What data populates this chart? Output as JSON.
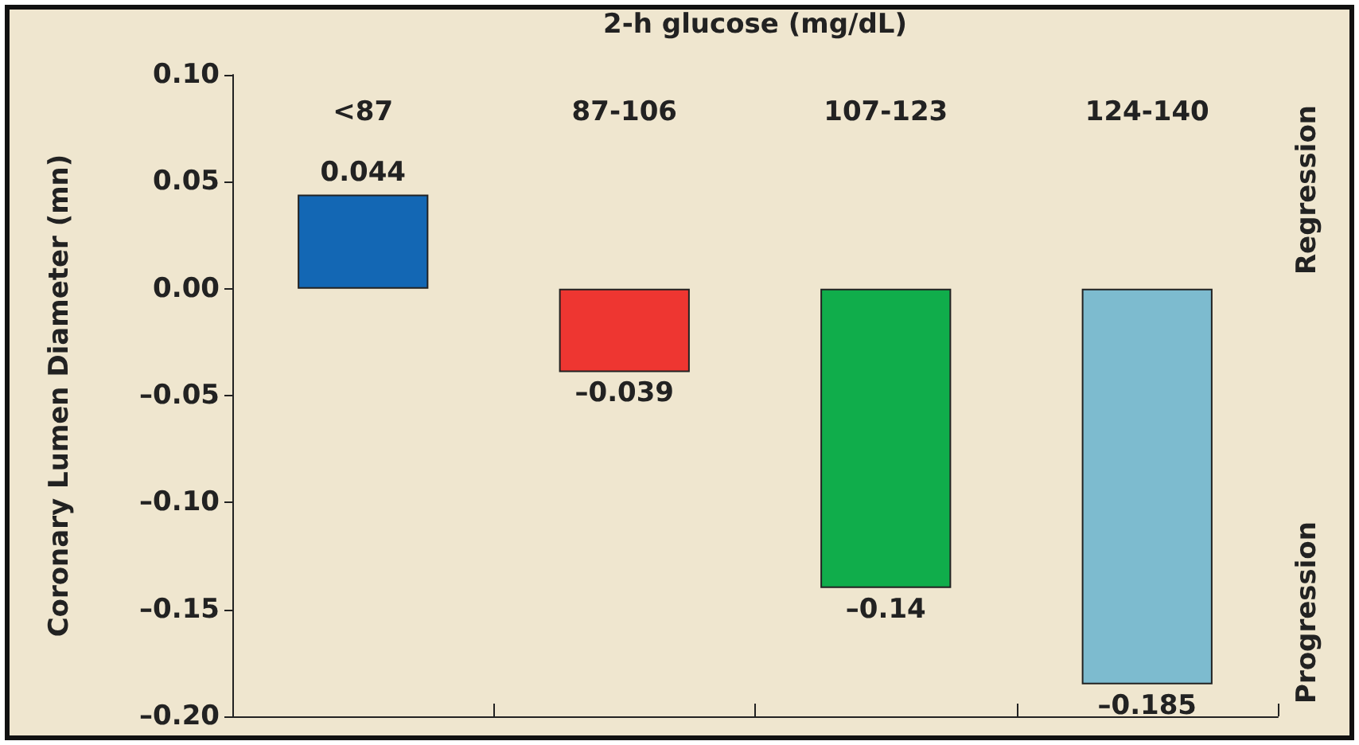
{
  "chart_data": {
    "type": "bar",
    "xlabel": "2-h glucose (mg/dL)",
    "ylabel": "Coronary Lumen Diameter (mn)",
    "categories": [
      "<87",
      "87-106",
      "107-123",
      "124-140"
    ],
    "values": [
      0.044,
      -0.039,
      -0.14,
      -0.185
    ],
    "colors": [
      "#1367b4",
      "#ee3631",
      "#10ad4b",
      "#7dbbcf"
    ],
    "value_labels": [
      "0.044",
      "–0.039",
      "–0.14",
      "–0.185"
    ],
    "ylim": [
      -0.2,
      0.1
    ],
    "yticks": [
      {
        "value": -0.2,
        "label": "–0.20"
      },
      {
        "value": -0.15,
        "label": "–0.15"
      },
      {
        "value": -0.1,
        "label": "–0.10"
      },
      {
        "value": -0.05,
        "label": "–0.05"
      },
      {
        "value": 0,
        "label": "0.00"
      },
      {
        "value": 0.05,
        "label": "0.05"
      },
      {
        "value": 0.1,
        "label": "0.10"
      }
    ],
    "annotations": [
      "Regression",
      "Progression"
    ],
    "grid": false
  }
}
